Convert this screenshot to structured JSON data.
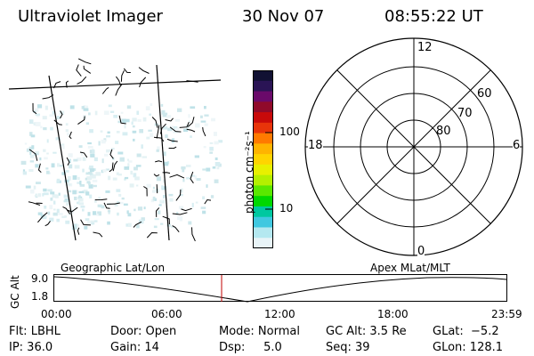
{
  "header": {
    "instrument": "Ultraviolet Imager",
    "date": "30 Nov 07",
    "time": "08:55:22 UT"
  },
  "colorbar": {
    "unit_label": "photon cm⁻²s⁻¹",
    "tick_labels": [
      "100",
      "10"
    ],
    "colors": [
      "#111133",
      "#2a1455",
      "#6a0a6a",
      "#900a2a",
      "#c80a0a",
      "#e8340a",
      "#ff7a00",
      "#ffb400",
      "#ffd400",
      "#e8f000",
      "#b4f000",
      "#5ae800",
      "#00d800",
      "#00c8a0",
      "#40c8e0",
      "#b4e8f0",
      "#e8f4f8"
    ]
  },
  "polar_plot": {
    "mlt_labels": [
      "12",
      "18",
      "6",
      "0"
    ],
    "lat_labels": [
      "60",
      "70",
      "80"
    ]
  },
  "timeline": {
    "axis_label": "GC Alt",
    "y_labels": [
      "9.0",
      "1.8"
    ],
    "left_caption": "Geographic Lat/Lon",
    "right_caption": "Apex MLat/MLT",
    "time_ticks": [
      "00:00",
      "06:00",
      "12:00",
      "18:00",
      "23:59"
    ]
  },
  "status": {
    "flt": "Flt: LBHL",
    "ip": "IP: 36.0",
    "door": "Door: Open",
    "gain": "Gain: 14",
    "mode": "Mode: Normal",
    "dsp": "Dsp:     5.0",
    "gc_alt": "GC Alt: 3.5 Re",
    "seq": "Seq: 39",
    "glat": "GLat:  −5.2",
    "glon": "GLon: 128.1"
  }
}
